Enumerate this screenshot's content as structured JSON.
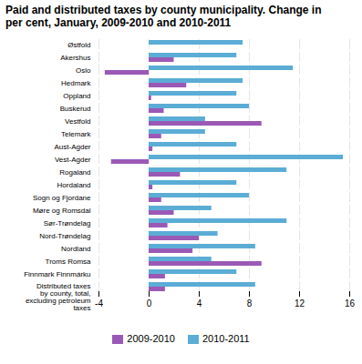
{
  "chart_data": {
    "type": "bar",
    "orientation": "horizontal",
    "title": "Paid and distributed taxes by county municipality. Change in\nper cent, January, 2009-2010 and 2010-2011",
    "categories": [
      "Østfold",
      "Akershus",
      "Oslo",
      "Hedmark",
      "Oppland",
      "Buskerud",
      "Vestfold",
      "Telemark",
      "Aust-Agder",
      "Vest-Agder",
      "Rogaland",
      "Hordaland",
      "Sogn og Fjordane",
      "Møre og Romsdal",
      "Sør-Trøndelag",
      "Nord-Trøndelag",
      "Nordland",
      "Troms Romsa",
      "Finnmark Finnmárku",
      "Distributed taxes\nby county, total,\nexcluding petroleum\ntaxes"
    ],
    "series": [
      {
        "name": "2009-2010",
        "color": "#9b59b6",
        "values": [
          0.0,
          2.0,
          -3.5,
          3.0,
          0.2,
          1.2,
          9.0,
          1.0,
          0.3,
          -3.0,
          2.5,
          0.3,
          1.0,
          2.0,
          1.5,
          4.0,
          3.5,
          9.0,
          1.3,
          1.3
        ]
      },
      {
        "name": "2010-2011",
        "color": "#5badd6",
        "values": [
          7.5,
          7.0,
          11.5,
          7.5,
          7.0,
          8.0,
          4.5,
          4.5,
          7.0,
          15.5,
          11.0,
          7.0,
          8.0,
          5.0,
          11.0,
          5.5,
          8.5,
          5.0,
          7.0,
          8.5
        ]
      }
    ],
    "xlim": [
      -4,
      16
    ],
    "xticks": [
      -4,
      0,
      4,
      8,
      12,
      16
    ],
    "grid": true,
    "legend": "bottom"
  }
}
